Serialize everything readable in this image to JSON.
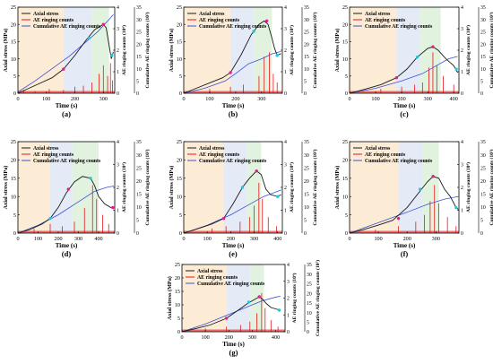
{
  "colors": {
    "stress": "#1a1a1a",
    "ae_counts": "#e8151b",
    "cumulative": "#3b4fd8",
    "zone_1": "#fbe9cf",
    "zone_2": "#dfe7f6",
    "zone_3": "#dcf1d8",
    "marker_cyan": "#23c7d8",
    "marker_magenta": "#e0208c",
    "marker_blue": "#3050e0"
  },
  "legend": {
    "stress": "Axial stress",
    "ae": "AE ringing counts",
    "cumulative": "Cumulative AE ringing counts"
  },
  "axis_labels": {
    "x": "Time (s)",
    "y_left": "Axial stress (MPa)",
    "y_mid": "AE ringing counts (10⁴)",
    "y_right": "Cumulative AE ringing counts (10⁵)"
  },
  "chart_data": [
    {
      "panel": "(a)",
      "type": "line",
      "xlim": [
        0,
        340
      ],
      "ylim_stress": [
        0,
        25
      ],
      "ylim_ae": [
        0,
        4
      ],
      "ylim_cumulative": [
        0,
        35
      ],
      "xticks": [
        0,
        100,
        200,
        300
      ],
      "zones": [
        [
          0,
          160
        ],
        [
          160,
          260
        ],
        [
          260,
          320
        ]
      ],
      "stress": [
        [
          0,
          0
        ],
        [
          40,
          1.5
        ],
        [
          80,
          3
        ],
        [
          120,
          4.5
        ],
        [
          160,
          7
        ],
        [
          200,
          11
        ],
        [
          240,
          15.5
        ],
        [
          270,
          18.5
        ],
        [
          300,
          20
        ],
        [
          310,
          19
        ],
        [
          320,
          14
        ],
        [
          328,
          10
        ],
        [
          335,
          12
        ]
      ],
      "cumulative": [
        [
          0,
          0.5
        ],
        [
          60,
          5
        ],
        [
          120,
          10
        ],
        [
          180,
          15
        ],
        [
          240,
          21
        ],
        [
          280,
          25
        ],
        [
          320,
          30
        ],
        [
          335,
          32
        ]
      ],
      "ae_spikes": [
        [
          20,
          0.15
        ],
        [
          60,
          0.1
        ],
        [
          110,
          0.2
        ],
        [
          160,
          0.15
        ],
        [
          200,
          0.3
        ],
        [
          230,
          0.35
        ],
        [
          260,
          0.5
        ],
        [
          285,
          0.9
        ],
        [
          300,
          1.3
        ],
        [
          315,
          0.8
        ],
        [
          325,
          1.4
        ],
        [
          332,
          0.6
        ]
      ],
      "markers": [
        [
          160,
          7,
          "marker_magenta"
        ],
        [
          250,
          16,
          "marker_cyan"
        ],
        [
          300,
          20,
          "marker_magenta"
        ],
        [
          330,
          11,
          "marker_cyan"
        ]
      ]
    },
    {
      "panel": "(b)",
      "type": "line",
      "xlim": [
        0,
        380
      ],
      "ylim_stress": [
        0,
        25
      ],
      "ylim_ae": [
        0,
        4
      ],
      "ylim_cumulative": [
        0,
        35
      ],
      "xticks": [
        0,
        100,
        200,
        300
      ],
      "zones": [
        [
          0,
          180
        ],
        [
          180,
          270
        ],
        [
          270,
          340
        ]
      ],
      "stress": [
        [
          0,
          0
        ],
        [
          50,
          1.5
        ],
        [
          100,
          3
        ],
        [
          150,
          4.5
        ],
        [
          180,
          6
        ],
        [
          220,
          11
        ],
        [
          260,
          17
        ],
        [
          290,
          20
        ],
        [
          310,
          21
        ],
        [
          325,
          20
        ],
        [
          340,
          16
        ],
        [
          350,
          13
        ],
        [
          360,
          11
        ],
        [
          375,
          11.5
        ]
      ],
      "cumulative": [
        [
          0,
          0
        ],
        [
          80,
          2
        ],
        [
          160,
          5
        ],
        [
          200,
          8
        ],
        [
          250,
          12
        ],
        [
          300,
          14
        ],
        [
          340,
          16
        ],
        [
          375,
          17
        ]
      ],
      "ae_spikes": [
        [
          100,
          0.2
        ],
        [
          180,
          0.3
        ],
        [
          230,
          0.4
        ],
        [
          290,
          0.8
        ],
        [
          310,
          1.7
        ],
        [
          330,
          1.9
        ],
        [
          345,
          0.9
        ],
        [
          360,
          0.5
        ]
      ],
      "markers": [
        [
          180,
          6,
          "marker_magenta"
        ],
        [
          270,
          18,
          "marker_cyan"
        ],
        [
          320,
          21,
          "marker_magenta"
        ],
        [
          360,
          11,
          "marker_cyan"
        ]
      ]
    },
    {
      "panel": "(c)",
      "type": "line",
      "xlim": [
        0,
        420
      ],
      "ylim_stress": [
        0,
        25
      ],
      "ylim_ae": [
        0,
        4
      ],
      "ylim_cumulative": [
        0,
        35
      ],
      "xticks": [
        0,
        100,
        200,
        300,
        400
      ],
      "zones": [
        [
          0,
          180
        ],
        [
          180,
          270
        ],
        [
          270,
          350
        ]
      ],
      "stress": [
        [
          0,
          0
        ],
        [
          60,
          1.2
        ],
        [
          120,
          2.5
        ],
        [
          180,
          4.5
        ],
        [
          220,
          7
        ],
        [
          260,
          10.5
        ],
        [
          300,
          13
        ],
        [
          320,
          13.5
        ],
        [
          340,
          12.5
        ],
        [
          370,
          10
        ],
        [
          400,
          8
        ],
        [
          415,
          6
        ]
      ],
      "cumulative": [
        [
          0,
          0
        ],
        [
          100,
          2
        ],
        [
          200,
          5
        ],
        [
          280,
          8
        ],
        [
          330,
          11
        ],
        [
          380,
          14
        ],
        [
          415,
          15
        ]
      ],
      "ae_spikes": [
        [
          120,
          0.2
        ],
        [
          200,
          0.3
        ],
        [
          250,
          0.4
        ],
        [
          280,
          0.5
        ],
        [
          305,
          1.2
        ],
        [
          320,
          1.9
        ],
        [
          335,
          1.3
        ],
        [
          360,
          0.8
        ],
        [
          400,
          0.4
        ]
      ],
      "markers": [
        [
          180,
          4.5,
          "marker_magenta"
        ],
        [
          260,
          10.5,
          "marker_cyan"
        ],
        [
          320,
          13.5,
          "marker_magenta"
        ],
        [
          410,
          7,
          "marker_cyan"
        ]
      ]
    },
    {
      "panel": "(d)",
      "type": "line",
      "xlim": [
        0,
        480
      ],
      "ylim_stress": [
        0,
        25
      ],
      "ylim_ae": [
        0,
        4
      ],
      "ylim_cumulative": [
        0,
        35
      ],
      "xticks": [
        0,
        100,
        200,
        300,
        400
      ],
      "zones": [
        [
          0,
          160
        ],
        [
          160,
          270
        ],
        [
          270,
          400
        ]
      ],
      "stress": [
        [
          0,
          0
        ],
        [
          60,
          1
        ],
        [
          120,
          2.5
        ],
        [
          160,
          4
        ],
        [
          200,
          7
        ],
        [
          240,
          11
        ],
        [
          280,
          14
        ],
        [
          320,
          15.5
        ],
        [
          360,
          15
        ],
        [
          380,
          13
        ],
        [
          400,
          10
        ],
        [
          430,
          8
        ],
        [
          460,
          7
        ],
        [
          475,
          7
        ]
      ],
      "cumulative": [
        [
          0,
          0
        ],
        [
          100,
          3
        ],
        [
          200,
          7
        ],
        [
          300,
          12
        ],
        [
          380,
          16
        ],
        [
          440,
          17.5
        ],
        [
          475,
          18
        ]
      ],
      "ae_spikes": [
        [
          80,
          0.2
        ],
        [
          160,
          0.4
        ],
        [
          220,
          0.3
        ],
        [
          280,
          0.5
        ],
        [
          330,
          1.1
        ],
        [
          370,
          2.1
        ],
        [
          390,
          1.5
        ],
        [
          420,
          0.8
        ],
        [
          450,
          0.4
        ]
      ],
      "markers": [
        [
          160,
          4,
          "marker_cyan"
        ],
        [
          250,
          12,
          "marker_magenta"
        ],
        [
          360,
          15,
          "marker_cyan"
        ],
        [
          470,
          7,
          "marker_magenta"
        ]
      ]
    },
    {
      "panel": "(e)",
      "type": "line",
      "xlim": [
        0,
        420
      ],
      "ylim_stress": [
        0,
        25
      ],
      "ylim_ae": [
        0,
        4
      ],
      "ylim_cumulative": [
        0,
        35
      ],
      "xticks": [
        0,
        100,
        200,
        300,
        400
      ],
      "zones": [
        [
          0,
          170
        ],
        [
          170,
          270
        ],
        [
          270,
          330
        ]
      ],
      "stress": [
        [
          0,
          0
        ],
        [
          60,
          1.2
        ],
        [
          120,
          2.5
        ],
        [
          170,
          4
        ],
        [
          210,
          8
        ],
        [
          250,
          12.5
        ],
        [
          280,
          15
        ],
        [
          310,
          17
        ],
        [
          330,
          16
        ],
        [
          350,
          12
        ],
        [
          370,
          10.5
        ],
        [
          400,
          10
        ],
        [
          415,
          10.5
        ]
      ],
      "cumulative": [
        [
          0,
          0
        ],
        [
          100,
          3
        ],
        [
          200,
          7
        ],
        [
          280,
          11
        ],
        [
          340,
          14
        ],
        [
          400,
          16
        ],
        [
          415,
          16.5
        ]
      ],
      "ae_spikes": [
        [
          120,
          0.2
        ],
        [
          180,
          0.3
        ],
        [
          240,
          0.5
        ],
        [
          280,
          0.7
        ],
        [
          300,
          1.2
        ],
        [
          320,
          2.2
        ],
        [
          335,
          1.5
        ],
        [
          360,
          0.7
        ],
        [
          395,
          0.3
        ]
      ],
      "markers": [
        [
          170,
          4,
          "marker_magenta"
        ],
        [
          250,
          12.5,
          "marker_cyan"
        ],
        [
          310,
          17,
          "marker_magenta"
        ],
        [
          400,
          10,
          "marker_cyan"
        ]
      ]
    },
    {
      "panel": "(f)",
      "type": "line",
      "xlim": [
        0,
        380
      ],
      "ylim_stress": [
        0,
        25
      ],
      "ylim_ae": [
        0,
        4
      ],
      "ylim_cumulative": [
        0,
        35
      ],
      "xticks": [
        0,
        100,
        200,
        300
      ],
      "zones": [
        [
          0,
          170
        ],
        [
          170,
          255
        ],
        [
          255,
          310
        ]
      ],
      "stress": [
        [
          0,
          0
        ],
        [
          50,
          1
        ],
        [
          100,
          2.2
        ],
        [
          150,
          3.5
        ],
        [
          200,
          7
        ],
        [
          240,
          11
        ],
        [
          270,
          14
        ],
        [
          290,
          15.5
        ],
        [
          310,
          15
        ],
        [
          330,
          12
        ],
        [
          350,
          10
        ],
        [
          370,
          7
        ],
        [
          378,
          6.5
        ]
      ],
      "cumulative": [
        [
          0,
          0
        ],
        [
          100,
          4
        ],
        [
          200,
          8
        ],
        [
          270,
          11
        ],
        [
          330,
          13
        ],
        [
          378,
          14
        ]
      ],
      "ae_spikes": [
        [
          90,
          0.15
        ],
        [
          170,
          0.3
        ],
        [
          230,
          0.5
        ],
        [
          260,
          0.8
        ],
        [
          280,
          1.4
        ],
        [
          295,
          2.1
        ],
        [
          310,
          1.3
        ],
        [
          340,
          0.7
        ],
        [
          370,
          0.3
        ]
      ],
      "markers": [
        [
          170,
          4,
          "marker_magenta"
        ],
        [
          245,
          12,
          "marker_cyan"
        ],
        [
          290,
          15.5,
          "marker_magenta"
        ],
        [
          370,
          7,
          "marker_cyan"
        ]
      ]
    },
    {
      "panel": "(g)",
      "type": "line",
      "xlim": [
        0,
        440
      ],
      "ylim_stress": [
        0,
        25
      ],
      "ylim_ae": [
        0,
        4
      ],
      "ylim_cumulative": [
        0,
        35
      ],
      "xticks": [
        0,
        100,
        200,
        300,
        400
      ],
      "zones": [
        [
          0,
          190
        ],
        [
          190,
          290
        ],
        [
          290,
          350
        ]
      ],
      "stress": [
        [
          0,
          0
        ],
        [
          60,
          1.2
        ],
        [
          120,
          2.5
        ],
        [
          190,
          5
        ],
        [
          240,
          8
        ],
        [
          280,
          10.5
        ],
        [
          310,
          12
        ],
        [
          330,
          13
        ],
        [
          345,
          12
        ],
        [
          360,
          10.5
        ],
        [
          380,
          9
        ],
        [
          400,
          8.5
        ],
        [
          420,
          8
        ]
      ],
      "cumulative": [
        [
          0,
          0
        ],
        [
          100,
          4
        ],
        [
          200,
          9
        ],
        [
          280,
          13
        ],
        [
          340,
          16
        ],
        [
          400,
          18
        ],
        [
          420,
          18.5
        ]
      ],
      "ae_spikes": [
        [
          100,
          0.2
        ],
        [
          190,
          0.3
        ],
        [
          250,
          0.4
        ],
        [
          290,
          0.6
        ],
        [
          320,
          1.1
        ],
        [
          340,
          2.3
        ],
        [
          355,
          1.4
        ],
        [
          380,
          0.7
        ],
        [
          410,
          0.3
        ]
      ],
      "markers": [
        [
          190,
          5,
          "marker_magenta"
        ],
        [
          285,
          11,
          "marker_cyan"
        ],
        [
          330,
          13,
          "marker_magenta"
        ],
        [
          415,
          8,
          "marker_cyan"
        ]
      ]
    }
  ]
}
